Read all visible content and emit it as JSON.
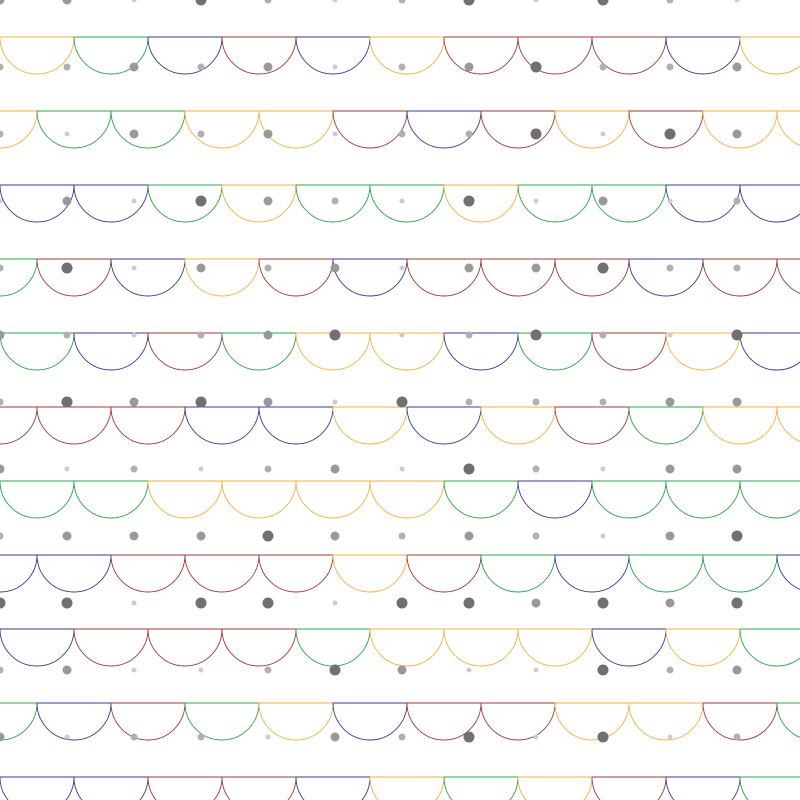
{
  "palette": {
    "background": "#ffffff",
    "arc_colors": {
      "orange": "#f5b041",
      "green": "#28a745",
      "navy": "#3a3a9a",
      "crimson": "#a33a3a"
    },
    "dot_colors": [
      "#cccccc",
      "#b0b0b0",
      "#999999",
      "#707070"
    ]
  },
  "scallop_rows": [
    {
      "shift": 0.0,
      "arcs": [
        "orange",
        "green",
        "navy",
        "crimson",
        "navy",
        "orange",
        "crimson",
        "crimson",
        "crimson",
        "navy",
        "orange"
      ]
    },
    {
      "shift": 0.5,
      "arcs": [
        "orange",
        "green",
        "green",
        "orange",
        "orange",
        "crimson",
        "navy",
        "crimson",
        "orange",
        "crimson",
        "orange",
        "orange"
      ]
    },
    {
      "shift": 0.0,
      "arcs": [
        "navy",
        "navy",
        "green",
        "orange",
        "green",
        "green",
        "orange",
        "green",
        "green",
        "navy",
        "navy"
      ]
    },
    {
      "shift": 0.5,
      "arcs": [
        "green",
        "crimson",
        "navy",
        "orange",
        "crimson",
        "navy",
        "crimson",
        "crimson",
        "crimson",
        "navy",
        "crimson",
        "crimson"
      ]
    },
    {
      "shift": 0.0,
      "arcs": [
        "green",
        "navy",
        "crimson",
        "green",
        "orange",
        "orange",
        "navy",
        "green",
        "crimson",
        "orange",
        "navy"
      ]
    },
    {
      "shift": 0.5,
      "arcs": [
        "crimson",
        "crimson",
        "crimson",
        "navy",
        "navy",
        "orange",
        "navy",
        "orange",
        "crimson",
        "green",
        "orange",
        "orange"
      ]
    },
    {
      "shift": 0.0,
      "arcs": [
        "green",
        "green",
        "orange",
        "orange",
        "orange",
        "orange",
        "green",
        "navy",
        "green",
        "green",
        "green"
      ]
    },
    {
      "shift": 0.5,
      "arcs": [
        "navy",
        "navy",
        "crimson",
        "crimson",
        "crimson",
        "orange",
        "crimson",
        "green",
        "navy",
        "green",
        "green",
        "navy"
      ]
    },
    {
      "shift": 0.0,
      "arcs": [
        "navy",
        "crimson",
        "crimson",
        "crimson",
        "green",
        "orange",
        "orange",
        "orange",
        "navy",
        "orange",
        "green"
      ]
    },
    {
      "shift": 0.5,
      "arcs": [
        "green",
        "navy",
        "crimson",
        "green",
        "orange",
        "navy",
        "crimson",
        "crimson",
        "orange",
        "orange",
        "crimson",
        "green"
      ]
    },
    {
      "shift": 0.0,
      "arcs": [
        "navy",
        "navy",
        "crimson",
        "crimson",
        "navy",
        "orange",
        "green",
        "orange",
        "crimson",
        "navy",
        "green"
      ]
    }
  ],
  "dot_rows": [
    [
      2,
      2,
      0,
      3,
      1,
      0,
      1,
      3,
      0,
      3,
      1,
      0
    ],
    [
      1,
      1,
      2,
      1,
      2,
      0,
      1,
      2,
      3,
      1,
      1,
      2
    ],
    [
      1,
      0,
      2,
      1,
      2,
      0,
      1,
      1,
      3,
      0,
      3,
      2
    ],
    [
      0,
      2,
      0,
      3,
      2,
      1,
      0,
      3,
      0,
      2,
      0,
      1
    ],
    [
      1,
      3,
      0,
      2,
      1,
      2,
      0,
      2,
      2,
      3,
      1,
      1
    ],
    [
      2,
      1,
      0,
      1,
      2,
      3,
      0,
      1,
      3,
      1,
      0,
      3
    ],
    [
      1,
      3,
      2,
      3,
      2,
      0,
      3,
      1,
      1,
      1,
      2,
      2
    ],
    [
      2,
      0,
      1,
      0,
      1,
      2,
      0,
      3,
      1,
      0,
      2,
      2
    ],
    [
      1,
      2,
      2,
      2,
      3,
      2,
      1,
      2,
      1,
      0,
      2,
      3
    ],
    [
      3,
      3,
      0,
      3,
      3,
      0,
      3,
      3,
      2,
      3,
      2,
      3
    ],
    [
      1,
      2,
      0,
      0,
      1,
      3,
      2,
      0,
      0,
      3,
      1,
      2
    ],
    [
      2,
      0,
      1,
      1,
      0,
      2,
      1,
      3,
      0,
      3,
      0,
      1
    ]
  ]
}
